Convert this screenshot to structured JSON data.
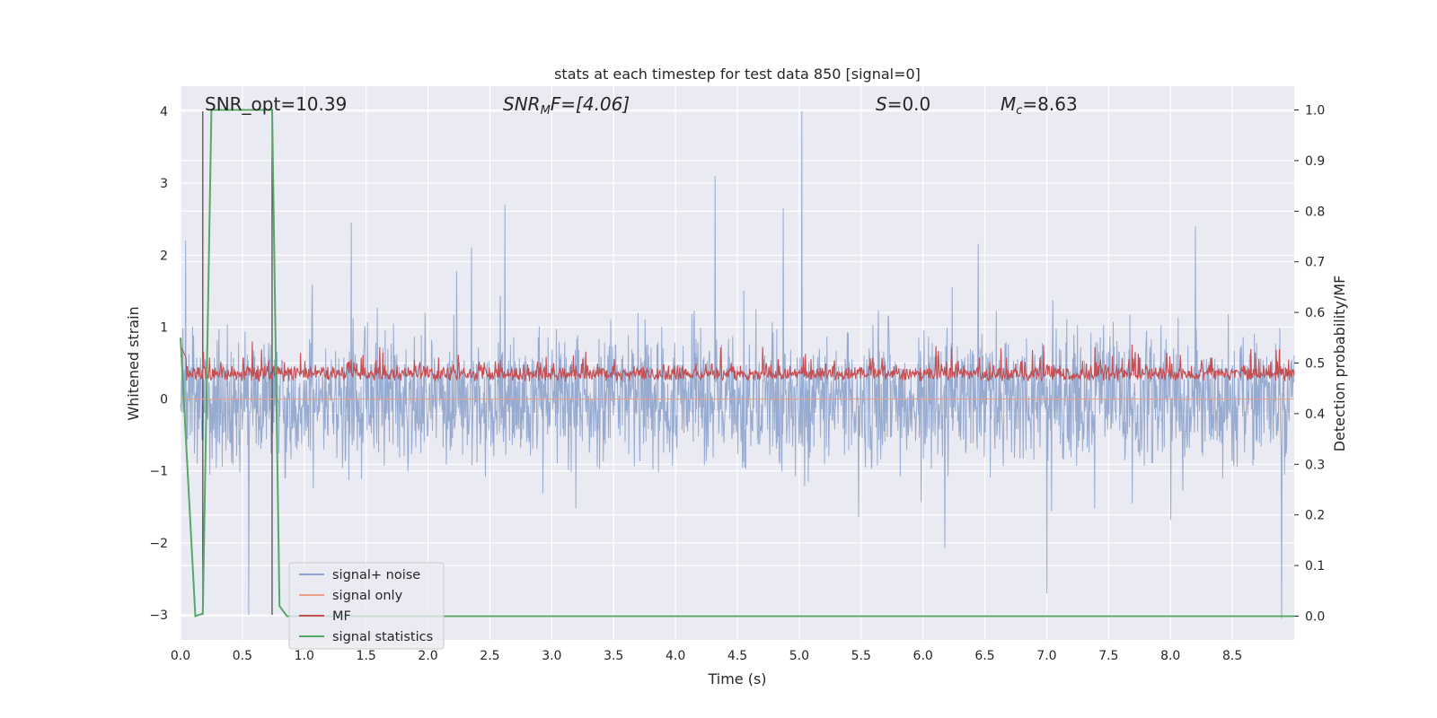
{
  "chart_data": {
    "type": "line",
    "title": "stats at each timestep for test data 850 [signal=0]",
    "xlabel": "Time (s)",
    "ylabel": "Whitened strain",
    "ylabel_right": "Detection probability/MF",
    "xlim": [
      0.0,
      9.0
    ],
    "ylim": [
      -3.35,
      4.35
    ],
    "ylim_right": [
      -0.047,
      1.047
    ],
    "xticks": [
      0.0,
      0.5,
      1.0,
      1.5,
      2.0,
      2.5,
      3.0,
      3.5,
      4.0,
      4.5,
      5.0,
      5.5,
      6.0,
      6.5,
      7.0,
      7.5,
      8.0,
      8.5
    ],
    "xtick_labels": [
      "0.0",
      "0.5",
      "1.0",
      "1.5",
      "2.0",
      "2.5",
      "3.0",
      "3.5",
      "4.0",
      "4.5",
      "5.0",
      "5.5",
      "6.0",
      "6.5",
      "7.0",
      "7.5",
      "8.0",
      "8.5"
    ],
    "yticks": [
      -3,
      -2,
      -1,
      0,
      1,
      2,
      3,
      4
    ],
    "ytick_labels": [
      "−3",
      "−2",
      "−1",
      "0",
      "1",
      "2",
      "3",
      "4"
    ],
    "yticks_right": [
      0.0,
      0.1,
      0.2,
      0.3,
      0.4,
      0.5,
      0.6,
      0.7,
      0.8,
      0.9,
      1.0
    ],
    "ytick_labels_right": [
      "0.0",
      "0.1",
      "0.2",
      "0.3",
      "0.4",
      "0.5",
      "0.6",
      "0.7",
      "0.8",
      "0.9",
      "1.0"
    ],
    "annotations": {
      "snr_opt": "SNR_opt=10.39",
      "snr_mf_base": "SNR",
      "snr_mf_sub": "M",
      "snr_mf_rest": "F=[4.06]",
      "s_var": "S",
      "s_value": "=0.0",
      "mc_base": "M",
      "mc_sub": "c",
      "mc_value": "=8.63"
    },
    "legend": {
      "position": "lower-left",
      "entries": [
        {
          "label": "signal+ noise",
          "color": "#8ea4cc"
        },
        {
          "label": "signal only",
          "color": "#eaa086"
        },
        {
          "label": "MF",
          "color": "#c44e52"
        },
        {
          "label": "signal statistics",
          "color": "#55a868"
        }
      ]
    },
    "series": [
      {
        "name": "signal+ noise",
        "axis": "left",
        "style": "dense-noise",
        "duration_s": 9.0,
        "envelope": {
          "upper_typical": 1.5,
          "lower_typical": -1.5,
          "peak_max": 4.0,
          "peak_min": -3.0
        },
        "notable_peaks": [
          {
            "x": 0.04,
            "y": 2.2
          },
          {
            "x": 1.38,
            "y": 2.45
          },
          {
            "x": 2.62,
            "y": 2.7
          },
          {
            "x": 4.32,
            "y": 3.1
          },
          {
            "x": 4.87,
            "y": 2.65
          },
          {
            "x": 5.02,
            "y": 4.0
          },
          {
            "x": 8.2,
            "y": 2.4
          },
          {
            "x": 7.0,
            "y": -2.7
          },
          {
            "x": 8.9,
            "y": -3.05
          },
          {
            "x": 0.55,
            "y": -3.0
          }
        ]
      },
      {
        "name": "signal only",
        "axis": "left",
        "x": [
          0.0,
          9.0
        ],
        "y": [
          0.0,
          0.0
        ]
      },
      {
        "name": "MF",
        "axis": "left",
        "style": "dense-noise",
        "duration_s": 9.0,
        "envelope": {
          "upper_typical": 0.6,
          "lower_typical": 0.05,
          "peak_max": 0.95
        }
      },
      {
        "name": "signal statistics",
        "axis": "right",
        "x": [
          0.0,
          0.12,
          0.18,
          0.25,
          0.3,
          0.74,
          0.8,
          0.86,
          9.0
        ],
        "y": [
          0.55,
          0.0,
          0.005,
          1.0,
          1.0,
          1.0,
          0.02,
          0.0,
          0.0
        ]
      }
    ],
    "vlines": [
      {
        "x": 0.18,
        "ymin": -3.0,
        "ymax": 4.0,
        "color": "#444444"
      },
      {
        "x": 0.74,
        "ymin": -3.0,
        "ymax": 4.0,
        "color": "#444444"
      }
    ],
    "colors": {
      "plot_background": "#eaeaf2",
      "grid": "#ffffff",
      "noise": "#8ea4cc",
      "mf": "#c44e52",
      "stat": "#55a868",
      "signal_only": "#eaa086"
    }
  }
}
